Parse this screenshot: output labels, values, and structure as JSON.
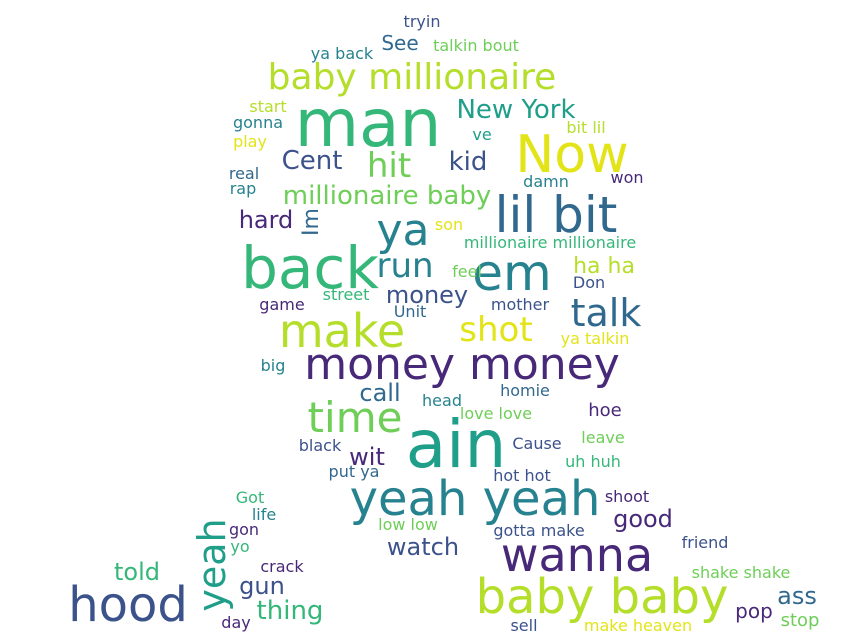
{
  "wordcloud": {
    "palette": {
      "dark_purple": "#482878",
      "indigo": "#3b528b",
      "blue": "#31688e",
      "teal": "#26828e",
      "sea_green": "#1f9e89",
      "green": "#35b779",
      "light_green": "#6ece58",
      "lime": "#b5de2b",
      "yellow": "#e3e418"
    },
    "words": [
      {
        "text": "tryin",
        "color": "#3b528b"
      },
      {
        "text": "ya back",
        "color": "#26828e"
      },
      {
        "text": "See",
        "color": "#31688e"
      },
      {
        "text": "talkin bout",
        "color": "#6ece58"
      },
      {
        "text": "baby millionaire",
        "color": "#b5de2b"
      },
      {
        "text": "start",
        "color": "#b5de2b"
      },
      {
        "text": "gonna",
        "color": "#26828e"
      },
      {
        "text": "play",
        "color": "#e3e418"
      },
      {
        "text": "man",
        "color": "#35b779"
      },
      {
        "text": "New York",
        "color": "#1f9e89"
      },
      {
        "text": "ve",
        "color": "#1f9e89"
      },
      {
        "text": "bit lil",
        "color": "#b5de2b"
      },
      {
        "text": "Now",
        "color": "#e3e418"
      },
      {
        "text": "Cent",
        "color": "#3b528b"
      },
      {
        "text": "hit",
        "color": "#6ece58"
      },
      {
        "text": "kid",
        "color": "#3b528b"
      },
      {
        "text": "real",
        "color": "#31688e"
      },
      {
        "text": "rap",
        "color": "#26828e"
      },
      {
        "text": "damn",
        "color": "#26828e"
      },
      {
        "text": "won",
        "color": "#482878"
      },
      {
        "text": "millionaire baby",
        "color": "#6ece58"
      },
      {
        "text": "lil bit",
        "color": "#31688e"
      },
      {
        "text": "hard",
        "color": "#482878"
      },
      {
        "text": "Im",
        "color": "#31688e"
      },
      {
        "text": "ya",
        "color": "#26828e"
      },
      {
        "text": "son",
        "color": "#e3e418"
      },
      {
        "text": "millionaire millionaire",
        "color": "#35b779"
      },
      {
        "text": "back",
        "color": "#35b779"
      },
      {
        "text": "run",
        "color": "#26828e"
      },
      {
        "text": "em",
        "color": "#26828e"
      },
      {
        "text": "feel",
        "color": "#6ece58"
      },
      {
        "text": "ha ha",
        "color": "#b5de2b"
      },
      {
        "text": "street",
        "color": "#35b779"
      },
      {
        "text": "money",
        "color": "#3b528b"
      },
      {
        "text": "Don",
        "color": "#3b528b"
      },
      {
        "text": "game",
        "color": "#482878"
      },
      {
        "text": "Unit",
        "color": "#31688e"
      },
      {
        "text": "mother",
        "color": "#3b528b"
      },
      {
        "text": "talk",
        "color": "#31688e"
      },
      {
        "text": "make",
        "color": "#b5de2b"
      },
      {
        "text": "shot",
        "color": "#e3e418"
      },
      {
        "text": "ya talkin",
        "color": "#e3e418"
      },
      {
        "text": "money money",
        "color": "#482878"
      },
      {
        "text": "big",
        "color": "#26828e"
      },
      {
        "text": "call",
        "color": "#31688e"
      },
      {
        "text": "homie",
        "color": "#31688e"
      },
      {
        "text": "time",
        "color": "#6ece58"
      },
      {
        "text": "head",
        "color": "#26828e"
      },
      {
        "text": "love love",
        "color": "#6ece58"
      },
      {
        "text": "hoe",
        "color": "#482878"
      },
      {
        "text": "ain",
        "color": "#1f9e89"
      },
      {
        "text": "black",
        "color": "#3b528b"
      },
      {
        "text": "wit",
        "color": "#482878"
      },
      {
        "text": "Cause",
        "color": "#3b528b"
      },
      {
        "text": "leave",
        "color": "#6ece58"
      },
      {
        "text": "put ya",
        "color": "#31688e"
      },
      {
        "text": "uh huh",
        "color": "#35b779"
      },
      {
        "text": "hot hot",
        "color": "#3b528b"
      },
      {
        "text": "yeah yeah",
        "color": "#26828e"
      },
      {
        "text": "shoot",
        "color": "#482878"
      },
      {
        "text": "Got",
        "color": "#35b779"
      },
      {
        "text": "life",
        "color": "#26828e"
      },
      {
        "text": "good",
        "color": "#482878"
      },
      {
        "text": "gon",
        "color": "#482878"
      },
      {
        "text": "low low",
        "color": "#6ece58"
      },
      {
        "text": "gotta make",
        "color": "#3b528b"
      },
      {
        "text": "yo",
        "color": "#35b779"
      },
      {
        "text": "yeah",
        "color": "#1f9e89"
      },
      {
        "text": "watch",
        "color": "#3b528b"
      },
      {
        "text": "wanna",
        "color": "#482878"
      },
      {
        "text": "friend",
        "color": "#3b528b"
      },
      {
        "text": "told",
        "color": "#35b779"
      },
      {
        "text": "crack",
        "color": "#482878"
      },
      {
        "text": "gun",
        "color": "#3b528b"
      },
      {
        "text": "shake shake",
        "color": "#6ece58"
      },
      {
        "text": "hood",
        "color": "#3b528b"
      },
      {
        "text": "baby baby",
        "color": "#b5de2b"
      },
      {
        "text": "ass",
        "color": "#31688e"
      },
      {
        "text": "thing",
        "color": "#35b779"
      },
      {
        "text": "pop",
        "color": "#482878"
      },
      {
        "text": "day",
        "color": "#482878"
      },
      {
        "text": "sell",
        "color": "#3b528b"
      },
      {
        "text": "make heaven",
        "color": "#e3e418"
      },
      {
        "text": "stop",
        "color": "#6ece58"
      }
    ]
  }
}
